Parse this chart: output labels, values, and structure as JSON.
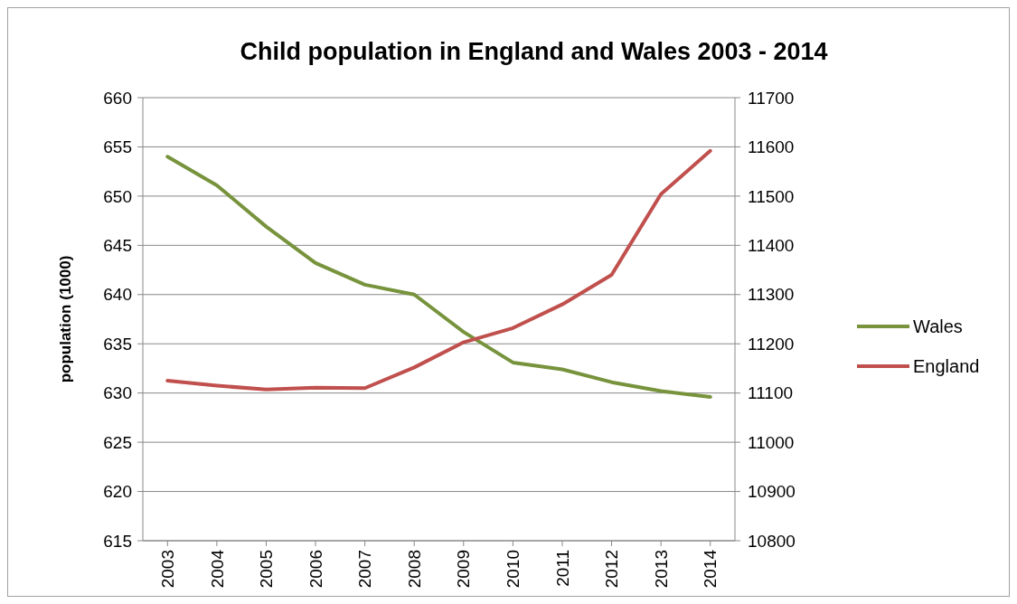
{
  "chart_data": {
    "type": "line",
    "title": "Child population in England and Wales 2003 - 2014",
    "ylabel": "population (1000)",
    "categories": [
      "2003",
      "2004",
      "2005",
      "2006",
      "2007",
      "2008",
      "2009",
      "2010",
      "2011",
      "2012",
      "2013",
      "2014"
    ],
    "series": [
      {
        "name": "Wales",
        "color": "#77933c",
        "values": [
          654.0,
          651.1,
          646.9,
          643.2,
          641.0,
          640.0,
          636.2,
          633.1,
          632.4,
          631.1,
          630.2,
          629.6
        ]
      },
      {
        "name": "England",
        "color": "#c0504d",
        "axis": "y2",
        "values": [
          11125,
          11115,
          11107,
          11111,
          11110,
          11152,
          11203,
          11232,
          11280,
          11340,
          11504,
          11592
        ]
      }
    ],
    "ylim": [
      615,
      660
    ],
    "yticks": [
      615,
      620,
      625,
      630,
      635,
      640,
      645,
      650,
      655,
      660
    ],
    "y2lim": [
      10800,
      11700
    ],
    "y2ticks": [
      10800,
      10900,
      11000,
      11100,
      11200,
      11300,
      11400,
      11500,
      11600,
      11700
    ],
    "grid": "y",
    "legend": "right",
    "line_style": "solid",
    "marker": "none"
  }
}
